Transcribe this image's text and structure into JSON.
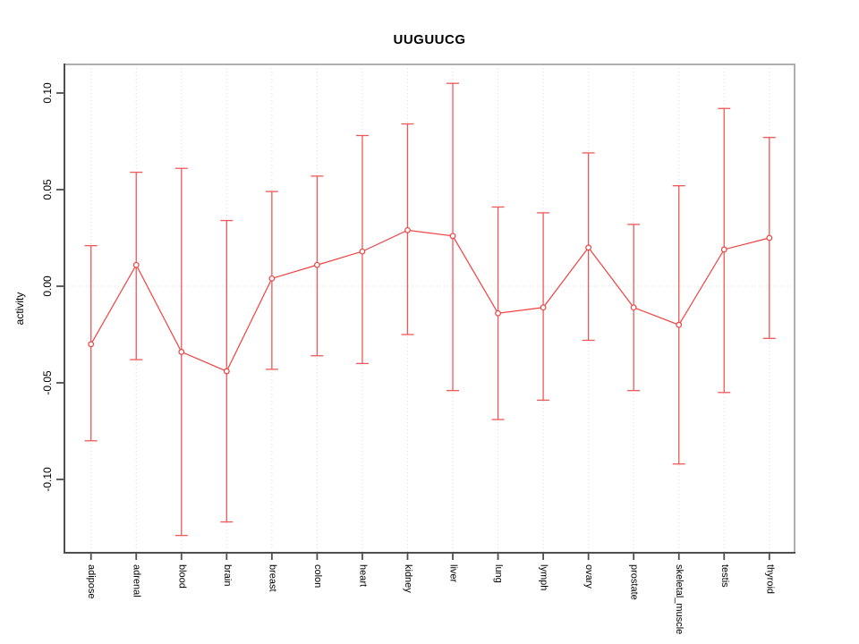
{
  "figure": {
    "background": "#ffffff"
  },
  "chart_data": {
    "type": "line",
    "title": "UUGUUCG",
    "xlabel": "",
    "ylabel": "activity",
    "categories": [
      "adipose",
      "adrenal",
      "blood",
      "brain",
      "breast",
      "colon",
      "heart",
      "kidney",
      "liver",
      "lung",
      "lymph",
      "ovary",
      "prostate",
      "skeletal_muscle",
      "testis",
      "thyroid"
    ],
    "series": [
      {
        "name": "activity",
        "marker": "open-circle",
        "values": [
          -0.03,
          0.011,
          -0.034,
          -0.044,
          0.004,
          0.011,
          0.018,
          0.029,
          0.026,
          -0.014,
          -0.011,
          0.02,
          -0.011,
          -0.02,
          0.019,
          0.025
        ],
        "error_low": [
          -0.08,
          -0.038,
          -0.129,
          -0.122,
          -0.043,
          -0.036,
          -0.04,
          -0.025,
          -0.054,
          -0.069,
          -0.059,
          -0.028,
          -0.054,
          -0.092,
          -0.055,
          -0.027
        ],
        "error_high": [
          0.021,
          0.059,
          0.061,
          0.034,
          0.049,
          0.057,
          0.078,
          0.084,
          0.105,
          0.041,
          0.038,
          0.069,
          0.032,
          0.052,
          0.092,
          0.077
        ]
      }
    ],
    "ytick_values": [
      0.1,
      0.05,
      0.0,
      -0.05,
      -0.1
    ],
    "ytick_labels": [
      "0.10",
      "0.05",
      "0.00",
      "-0.05",
      "-0.10"
    ],
    "ylim": [
      -0.138,
      0.115
    ],
    "grid": {
      "vertical": "dotted-per-category",
      "horizontal_zero_line": true
    },
    "legend": "none",
    "colors": {
      "series": "#ee4141",
      "error_bar": "#f05858",
      "grid": "#dadada",
      "frame": "#9b9b9b",
      "axis": "#4f4f4f",
      "text": "#000000",
      "background": "#ffffff"
    }
  }
}
